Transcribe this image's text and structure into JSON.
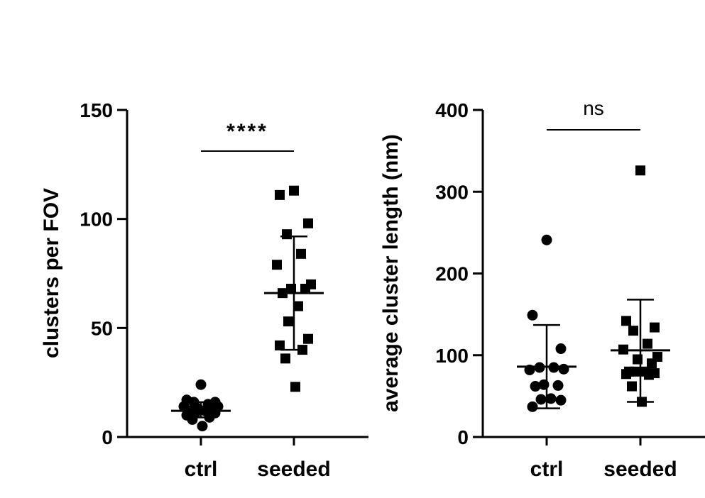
{
  "chart_data": [
    {
      "type": "scatter",
      "ylabel": "clusters per FOV",
      "ylim": [
        0,
        150
      ],
      "yticks": [
        0,
        50,
        100,
        150
      ],
      "categories": [
        "ctrl",
        "seeded"
      ],
      "groups": [
        {
          "category": "ctrl",
          "marker": "circle",
          "values": [
            24,
            17,
            16,
            16,
            15,
            14,
            14,
            13,
            13,
            12,
            12,
            11,
            11,
            10,
            9,
            8,
            5
          ],
          "mean": 12,
          "sd": [
            9,
            16
          ]
        },
        {
          "category": "seeded",
          "marker": "square",
          "values": [
            113,
            111,
            98,
            93,
            84,
            79,
            70,
            68,
            68,
            66,
            60,
            53,
            45,
            42,
            40,
            36,
            23
          ],
          "mean": 66,
          "sd": [
            40,
            92
          ]
        }
      ],
      "significance": {
        "label": "****",
        "between": [
          "ctrl",
          "seeded"
        ]
      }
    },
    {
      "type": "scatter",
      "ylabel": "average cluster length (nm)",
      "ylim": [
        0,
        400
      ],
      "yticks": [
        0,
        100,
        200,
        300,
        400
      ],
      "categories": [
        "ctrl",
        "seeded"
      ],
      "groups": [
        {
          "category": "ctrl",
          "marker": "circle",
          "values": [
            241,
            149,
            108,
            85,
            85,
            82,
            83,
            64,
            63,
            62,
            47,
            46,
            45,
            37
          ],
          "mean": 86,
          "sd": [
            35,
            137
          ]
        },
        {
          "category": "seeded",
          "marker": "square",
          "values": [
            326,
            142,
            134,
            130,
            114,
            107,
            98,
            95,
            90,
            80,
            80,
            80,
            78,
            77,
            76,
            62,
            43
          ],
          "mean": 106,
          "sd": [
            43,
            168
          ]
        }
      ],
      "significance": {
        "label": "ns",
        "between": [
          "ctrl",
          "seeded"
        ]
      }
    }
  ]
}
